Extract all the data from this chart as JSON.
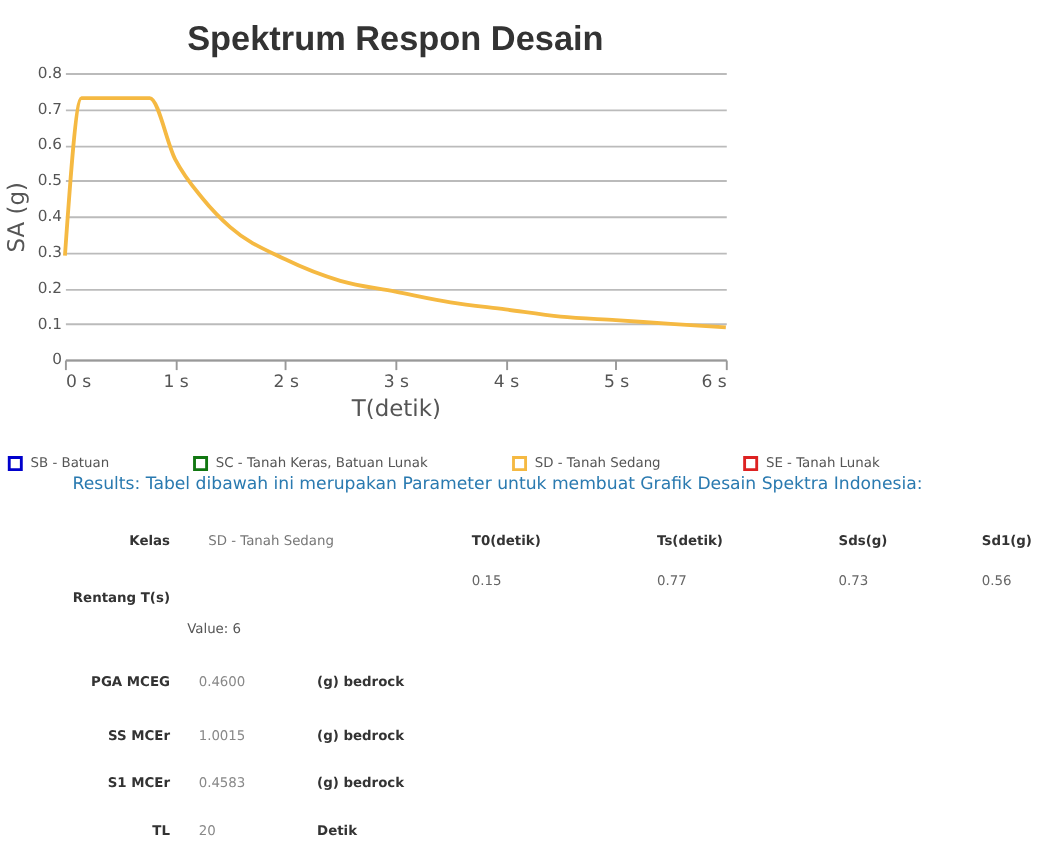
{
  "chart_data": {
    "type": "line",
    "title": "Spektrum Respon Desain",
    "xlabel": "T(detik)",
    "ylabel": "SA (g)",
    "x": [
      0,
      0.15,
      0.77,
      1,
      1.25,
      1.5,
      2,
      2.5,
      3,
      3.5,
      4,
      4.5,
      5,
      5.5,
      6
    ],
    "series": [
      {
        "name": "SB - Batuan",
        "color": "#0000cc",
        "values": [
          null,
          null,
          null,
          null,
          null,
          null,
          null,
          null,
          null,
          null,
          null,
          null,
          null,
          null,
          null
        ]
      },
      {
        "name": "SC - Tanah Keras, Batuan Lunak",
        "color": "#117711",
        "values": [
          null,
          null,
          null,
          null,
          null,
          null,
          null,
          null,
          null,
          null,
          null,
          null,
          null,
          null,
          null
        ]
      },
      {
        "name": "SD - Tanah Sedang",
        "color": "#f5b942",
        "values": [
          0.29,
          0.73,
          0.73,
          0.56,
          0.45,
          0.37,
          0.28,
          0.22,
          0.19,
          0.16,
          0.14,
          0.12,
          0.11,
          0.1,
          0.09
        ]
      },
      {
        "name": "SE - Tanah Lunak",
        "color": "#dd2222",
        "values": [
          null,
          null,
          null,
          null,
          null,
          null,
          null,
          null,
          null,
          null,
          null,
          null,
          null,
          null,
          null
        ]
      }
    ],
    "xlim": [
      0,
      6
    ],
    "xticks": [
      {
        "value": 0,
        "label": "0 s"
      },
      {
        "value": 1,
        "label": "1 s"
      },
      {
        "value": 2,
        "label": "2 s"
      },
      {
        "value": 3,
        "label": "3 s"
      },
      {
        "value": 4,
        "label": "4 s"
      },
      {
        "value": 5,
        "label": "5 s"
      },
      {
        "value": 6,
        "label": "6 s"
      }
    ],
    "ylim": [
      0,
      0.8
    ],
    "yticks": [
      {
        "value": 0,
        "label": "0"
      },
      0.1,
      0.2,
      0.3,
      0.4,
      0.5,
      0.6,
      0.7,
      0.8
    ],
    "grid": "y",
    "legend": "bottom",
    "marker": "none",
    "line_style": "solid",
    "annotations": [
      "Results: Tabel dibawah ini merupakan Parameter untuk membuat Grafik Desain Spektra Indonesia:",
      "Kelas",
      "SD - Tanah Sedang",
      "Rentang T(s)",
      "Value: 6",
      "PGA MCEG",
      "0.4600",
      "(g) bedrock",
      "SS MCEr",
      "1.0015",
      "(g) bedrock",
      "S1 MCEr",
      "0.4583",
      "(g) bedrock",
      "TL",
      "20",
      "Detik",
      "T0(detik)",
      "Ts(detik)",
      "Sds(g)",
      "Sd1(g)",
      "0.15",
      "0.77",
      "0.73",
      "0.56"
    ]
  }
}
